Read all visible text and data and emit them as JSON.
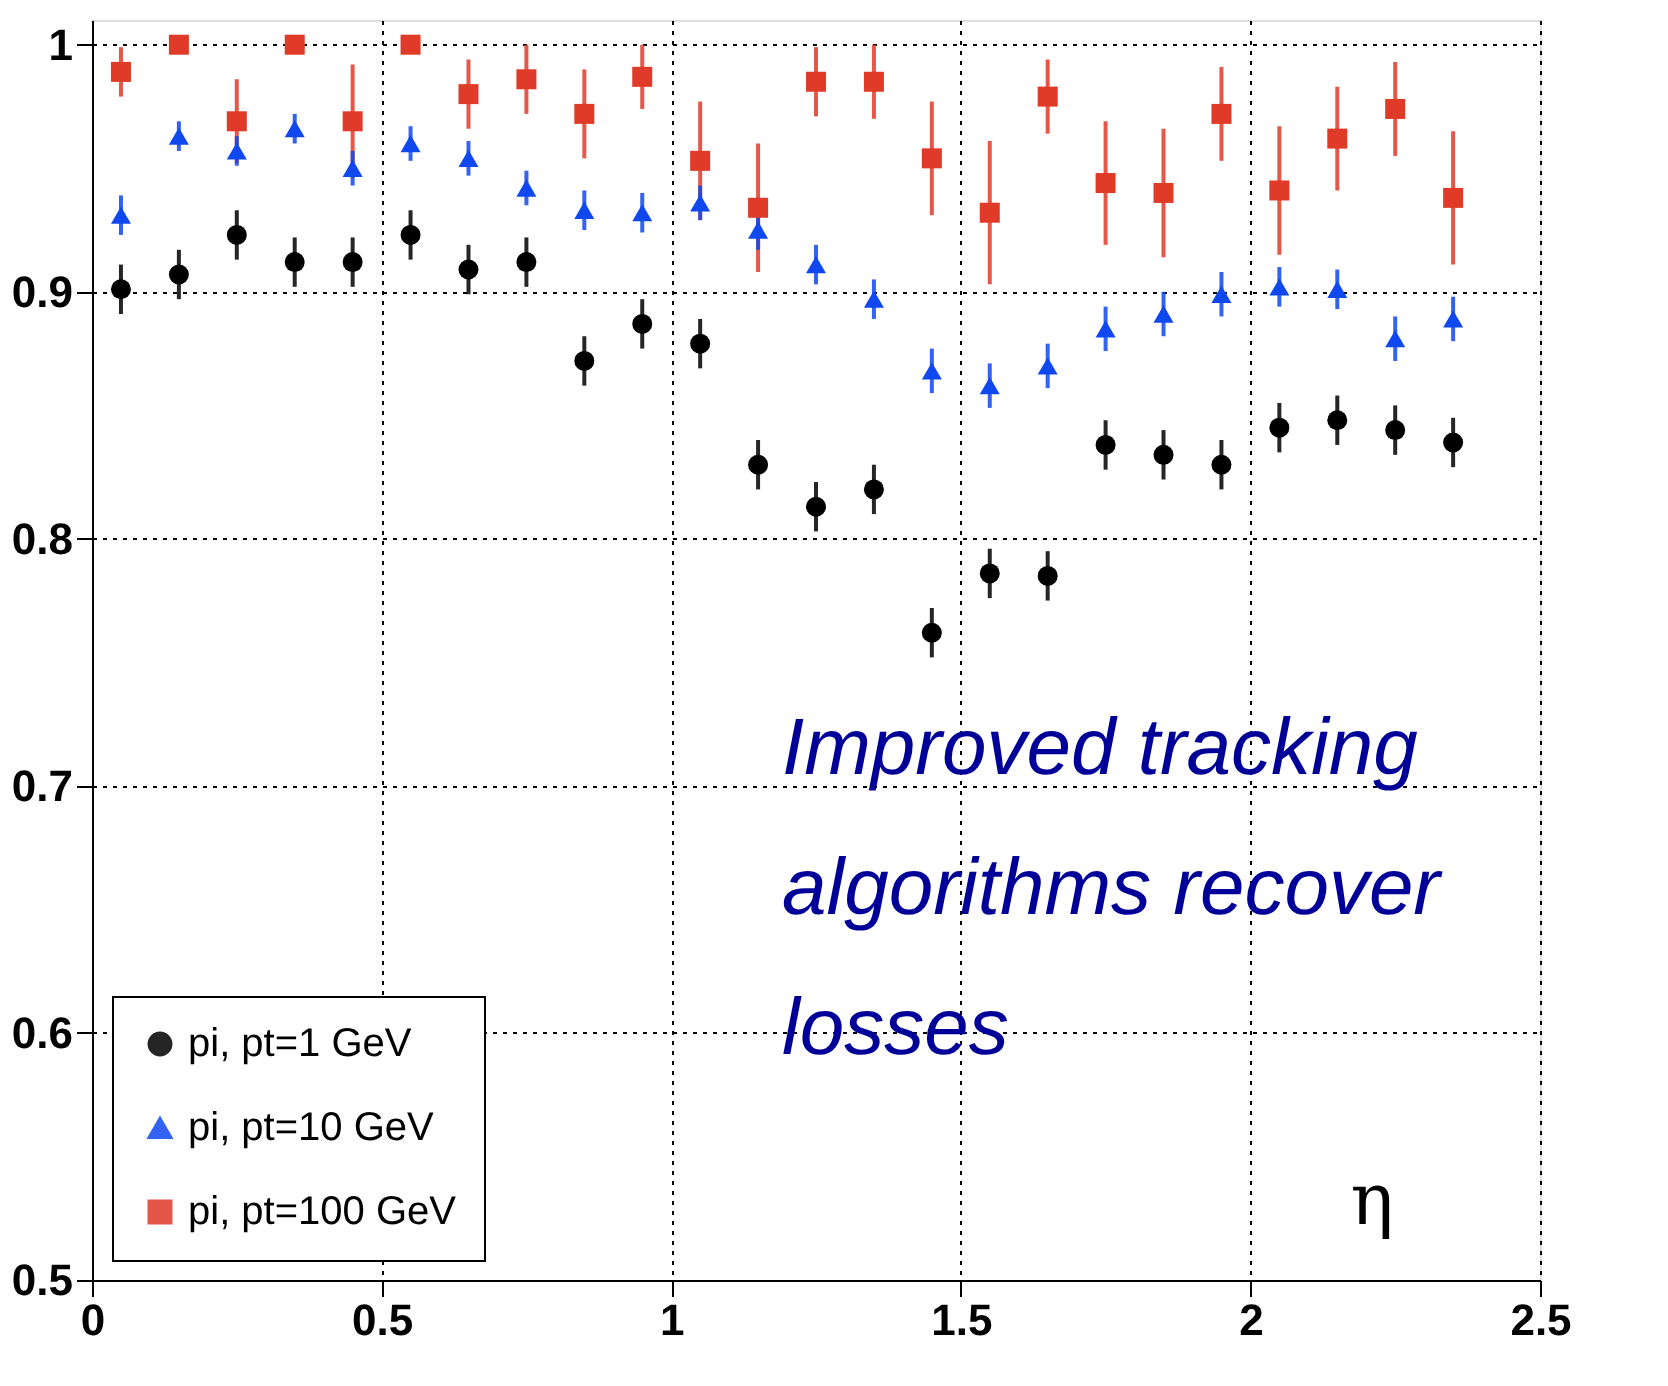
{
  "chart_data": {
    "type": "scatter",
    "xlabel": "η",
    "x": [
      0.05,
      0.15,
      0.25,
      0.35,
      0.45,
      0.55,
      0.65,
      0.75,
      0.85,
      0.95,
      1.05,
      1.15,
      1.25,
      1.35,
      1.45,
      1.55,
      1.65,
      1.75,
      1.85,
      1.95,
      2.05,
      2.15,
      2.25,
      2.35
    ],
    "series": [
      {
        "name": "pi, pt=1 GeV",
        "color": "#000000",
        "marker": "circle",
        "values": [
          0.901,
          0.907,
          0.923,
          0.912,
          0.912,
          0.923,
          0.909,
          0.912,
          0.872,
          0.887,
          0.879,
          0.83,
          0.813,
          0.82,
          0.762,
          0.786,
          0.785,
          0.838,
          0.834,
          0.83,
          0.845,
          0.848,
          0.844,
          0.839
        ],
        "errors": [
          0.01,
          0.01,
          0.01,
          0.01,
          0.01,
          0.01,
          0.01,
          0.01,
          0.01,
          0.01,
          0.01,
          0.01,
          0.01,
          0.01,
          0.01,
          0.01,
          0.01,
          0.01,
          0.01,
          0.01,
          0.01,
          0.01,
          0.01,
          0.01
        ]
      },
      {
        "name": "pi, pt=10 GeV",
        "color": "#1048f0",
        "marker": "triangle",
        "values": [
          0.931,
          0.963,
          0.957,
          0.966,
          0.95,
          0.96,
          0.954,
          0.942,
          0.933,
          0.932,
          0.936,
          0.925,
          0.911,
          0.897,
          0.868,
          0.862,
          0.87,
          0.885,
          0.891,
          0.899,
          0.902,
          0.901,
          0.881,
          0.889
        ],
        "errors": [
          0.008,
          0.006,
          0.006,
          0.006,
          0.007,
          0.007,
          0.007,
          0.007,
          0.008,
          0.008,
          0.007,
          0.008,
          0.008,
          0.008,
          0.009,
          0.009,
          0.009,
          0.009,
          0.009,
          0.009,
          0.008,
          0.008,
          0.009,
          0.009
        ]
      },
      {
        "name": "pi, pt=100 GeV",
        "color": "#e03a28",
        "marker": "square",
        "values": [
          0.989,
          1.0,
          0.969,
          1.0,
          0.969,
          1.0,
          0.98,
          0.986,
          0.972,
          0.987,
          0.953,
          0.934,
          0.985,
          0.985,
          0.954,
          0.932,
          0.979,
          0.944,
          0.94,
          0.972,
          0.941,
          0.962,
          0.974,
          0.938
        ],
        "errors": [
          0.01,
          null,
          0.017,
          null,
          0.023,
          null,
          0.014,
          0.014,
          0.018,
          0.013,
          0.024,
          0.026,
          0.014,
          0.015,
          0.023,
          0.029,
          0.015,
          0.025,
          0.026,
          0.019,
          0.026,
          0.021,
          0.019,
          0.027
        ]
      }
    ],
    "xlim": [
      0,
      2.5
    ],
    "xticks": [
      0,
      0.5,
      1,
      1.5,
      2,
      2.5
    ],
    "ylim": [
      0.5,
      1.01
    ],
    "yticks": [
      0.5,
      0.6,
      0.7,
      0.8,
      0.9,
      1
    ],
    "grid": true,
    "legend": "bottom left",
    "annotations": [
      "Improved tracking algorithms recover losses"
    ]
  }
}
